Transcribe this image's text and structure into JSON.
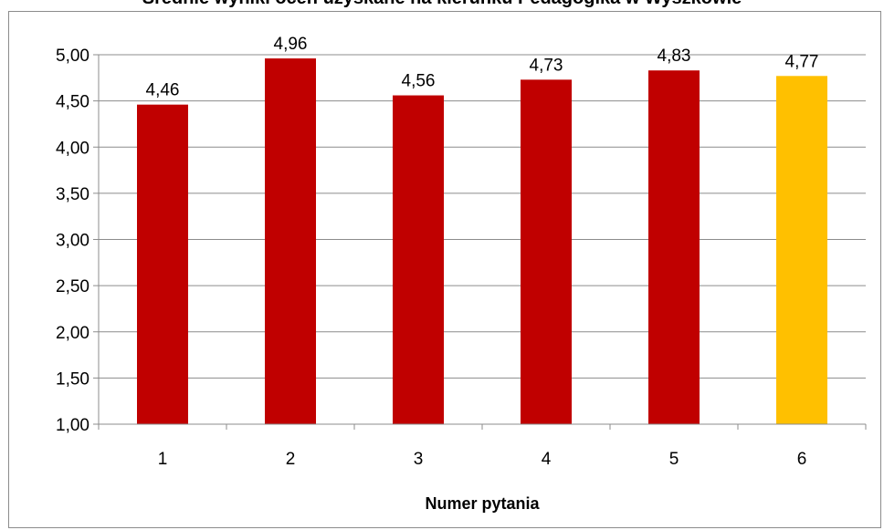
{
  "chart_data": {
    "type": "bar",
    "title": "Średnie wyniki ocen uzyskane na kierunku Pedagogika w Wyszkowie",
    "xlabel": "Numer pytania",
    "ylabel": "",
    "categories": [
      "1",
      "2",
      "3",
      "4",
      "5",
      "6"
    ],
    "values": [
      4.46,
      4.96,
      4.56,
      4.73,
      4.83,
      4.77
    ],
    "data_labels": [
      "4,46",
      "4,96",
      "4,56",
      "4,73",
      "4,83",
      "4,77"
    ],
    "ylim": [
      1.0,
      5.0
    ],
    "yticks": [
      1.0,
      1.5,
      2.0,
      2.5,
      3.0,
      3.5,
      4.0,
      4.5,
      5.0
    ],
    "ytick_labels": [
      "1,00",
      "1,50",
      "2,00",
      "2,50",
      "3,00",
      "3,50",
      "4,00",
      "4,50",
      "5,00"
    ],
    "grid": true,
    "legend": "none",
    "colors": {
      "bar": "#c00000",
      "highlight": "#ffc000",
      "grid": "#8c8c8c",
      "axis": "#8c8c8c"
    },
    "highlight_index": 5
  }
}
